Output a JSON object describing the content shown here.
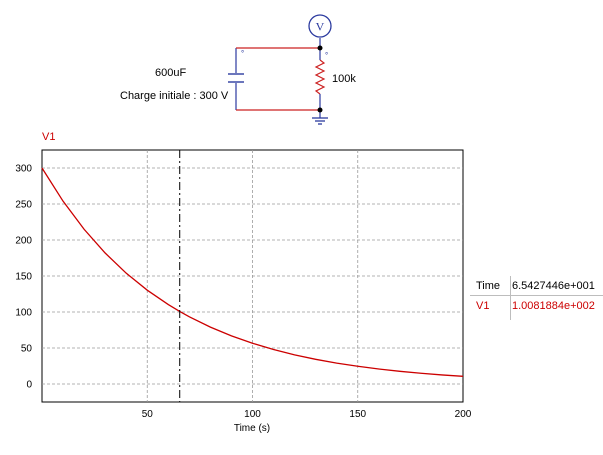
{
  "circuit": {
    "capacitor_label": "600uF",
    "charge_label": "Charge initiale : 300 V",
    "resistor_label": "100k",
    "voltmeter_symbol": "V"
  },
  "chart_data": {
    "type": "line",
    "title": "",
    "xlabel": "Time (s)",
    "ylabel": "V1",
    "xlim": [
      0,
      200
    ],
    "ylim": [
      -25,
      325
    ],
    "x_ticks": [
      50,
      100,
      150,
      200
    ],
    "y_ticks": [
      0,
      50,
      100,
      150,
      200,
      250,
      300
    ],
    "grid": true,
    "series": [
      {
        "name": "V1",
        "color": "#cc0000",
        "x": [
          0,
          10,
          20,
          30,
          40,
          50,
          60,
          65.427,
          70,
          80,
          90,
          100,
          110,
          120,
          130,
          140,
          150,
          160,
          170,
          180,
          190,
          200
        ],
        "y": [
          300,
          253.9,
          214.9,
          181.9,
          153.9,
          130.3,
          110.3,
          100.8,
          93.3,
          79.0,
          66.8,
          56.6,
          47.9,
          40.5,
          34.3,
          29.0,
          24.6,
          20.8,
          17.6,
          14.9,
          12.6,
          10.7
        ]
      }
    ],
    "cursor": {
      "x": 65.427,
      "y": 100.819
    }
  },
  "cursor_readout": {
    "time_label": "Time",
    "time_value": "6.5427446e+001",
    "series_label": "V1",
    "series_value": "1.0081884e+002"
  }
}
